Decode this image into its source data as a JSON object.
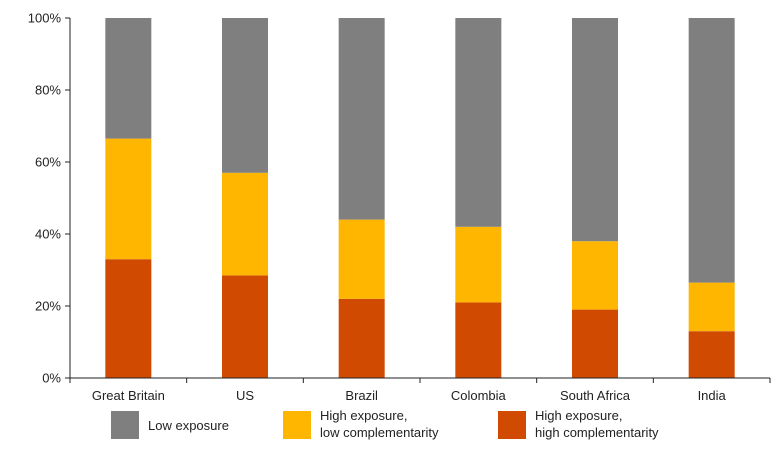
{
  "chart_data": {
    "type": "bar",
    "stacked": true,
    "categories": [
      "Great Britain",
      "US",
      "Brazil",
      "Colombia",
      "South Africa",
      "India"
    ],
    "series": [
      {
        "name": "High exposure,\nhigh complementarity",
        "color": "#d04a02",
        "values": [
          33,
          28.5,
          22,
          21,
          19,
          13
        ]
      },
      {
        "name": "High exposure,\nlow complementarity",
        "color": "#ffb600",
        "values": [
          33.5,
          28.5,
          22,
          21,
          19,
          13.5
        ]
      },
      {
        "name": "Low exposure",
        "color": "#7f7f7f",
        "values": [
          33.5,
          43,
          56,
          58,
          62,
          73.5
        ]
      }
    ],
    "ylim": [
      0,
      100
    ],
    "yticks": [
      "0%",
      "20%",
      "40%",
      "60%",
      "80%",
      "100%"
    ],
    "ytick_values": [
      0,
      20,
      40,
      60,
      80,
      100
    ],
    "legend_position": "bottom",
    "grid": false
  },
  "legend": {
    "items": [
      {
        "label": "Low exposure",
        "color": "#7f7f7f"
      },
      {
        "label": "High exposure,\nlow complementarity",
        "color": "#ffb600"
      },
      {
        "label": "High exposure,\nhigh complementarity",
        "color": "#d04a02"
      }
    ]
  }
}
